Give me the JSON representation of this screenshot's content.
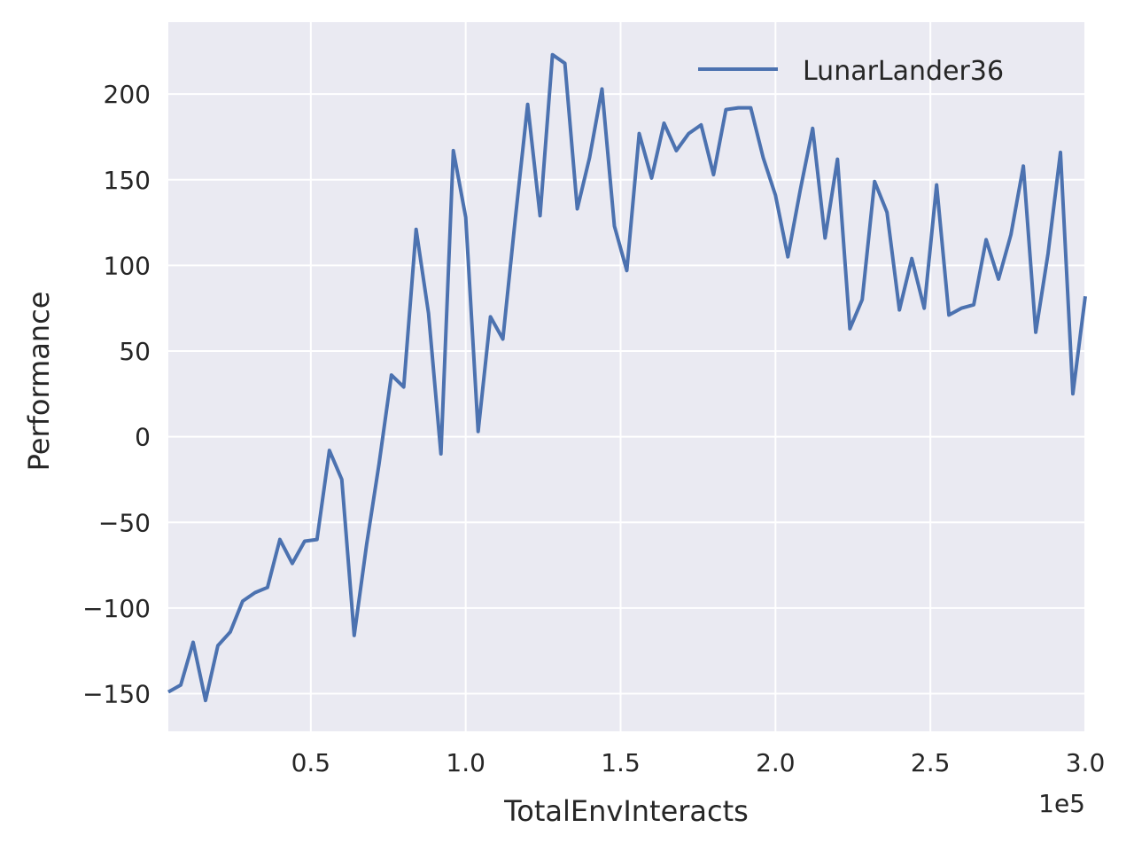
{
  "chart_data": {
    "type": "line",
    "xlabel": "TotalEnvInteracts",
    "ylabel": "Performance",
    "x_offset_label": "1e5",
    "xlim": [
      4000,
      300000
    ],
    "ylim": [
      -172,
      242
    ],
    "x_ticks": [
      50000,
      100000,
      150000,
      200000,
      250000,
      300000
    ],
    "x_tick_labels": [
      "0.5",
      "1.0",
      "1.5",
      "2.0",
      "2.5",
      "3.0"
    ],
    "y_ticks": [
      -150,
      -100,
      -50,
      0,
      50,
      100,
      150,
      200
    ],
    "y_tick_labels": [
      "−150",
      "−100",
      "−50",
      "0",
      "50",
      "100",
      "150",
      "200"
    ],
    "grid": true,
    "legend_position": "top-right",
    "background_color": "#EAEAF2",
    "grid_color": "#FFFFFF",
    "series": [
      {
        "name": "LunarLander36",
        "color": "#4C72B0",
        "x": [
          4000,
          8000,
          12000,
          16000,
          20000,
          24000,
          28000,
          32000,
          36000,
          40000,
          44000,
          48000,
          52000,
          56000,
          60000,
          64000,
          68000,
          72000,
          76000,
          80000,
          84000,
          88000,
          92000,
          96000,
          100000,
          104000,
          108000,
          112000,
          116000,
          120000,
          124000,
          128000,
          132000,
          136000,
          140000,
          144000,
          148000,
          152000,
          156000,
          160000,
          164000,
          168000,
          172000,
          176000,
          180000,
          184000,
          188000,
          192000,
          196000,
          200000,
          204000,
          208000,
          212000,
          216000,
          220000,
          224000,
          228000,
          232000,
          236000,
          240000,
          244000,
          248000,
          252000,
          256000,
          260000,
          264000,
          268000,
          272000,
          276000,
          280000,
          284000,
          288000,
          292000,
          296000,
          300000
        ],
        "values": [
          -149,
          -145,
          -120,
          -154,
          -122,
          -114,
          -96,
          -91,
          -88,
          -60,
          -74,
          -61,
          -60,
          -8,
          -25,
          -116,
          -63,
          -16,
          36,
          29,
          121,
          72,
          -10,
          167,
          128,
          3,
          70,
          57,
          127,
          194,
          129,
          223,
          218,
          133,
          163,
          203,
          123,
          97,
          177,
          151,
          183,
          167,
          177,
          182,
          153,
          191,
          192,
          192,
          163,
          141,
          105,
          144,
          180,
          116,
          162,
          63,
          80,
          149,
          131,
          74,
          104,
          75,
          147,
          71,
          75,
          77,
          115,
          92,
          118,
          158,
          61,
          107,
          166,
          25,
          82
        ]
      }
    ]
  }
}
